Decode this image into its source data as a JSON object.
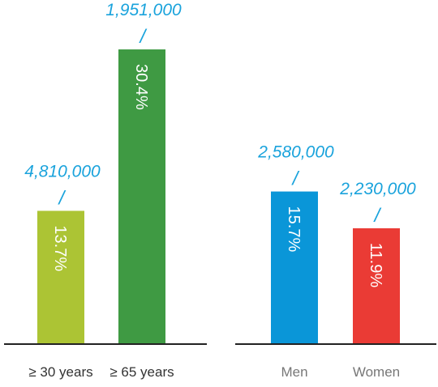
{
  "chart_data": [
    {
      "type": "bar",
      "categories": [
        "≥ 30 years",
        "≥ 65 years"
      ],
      "values": [
        13.7,
        30.4
      ],
      "data_labels": [
        "13.7%",
        "30.4%"
      ],
      "annotations": [
        "4,810,000",
        "1,951,000"
      ],
      "colors": [
        "#acc434",
        "#3f9a43"
      ],
      "ylim": [
        0,
        35
      ]
    },
    {
      "type": "bar",
      "categories": [
        "Men",
        "Women"
      ],
      "values": [
        15.7,
        11.9
      ],
      "data_labels": [
        "15.7%",
        "11.9%"
      ],
      "annotations": [
        "2,580,000",
        "2,230,000"
      ],
      "colors": [
        "#0a96d8",
        "#ea3b35"
      ],
      "ylim": [
        0,
        35
      ]
    }
  ]
}
